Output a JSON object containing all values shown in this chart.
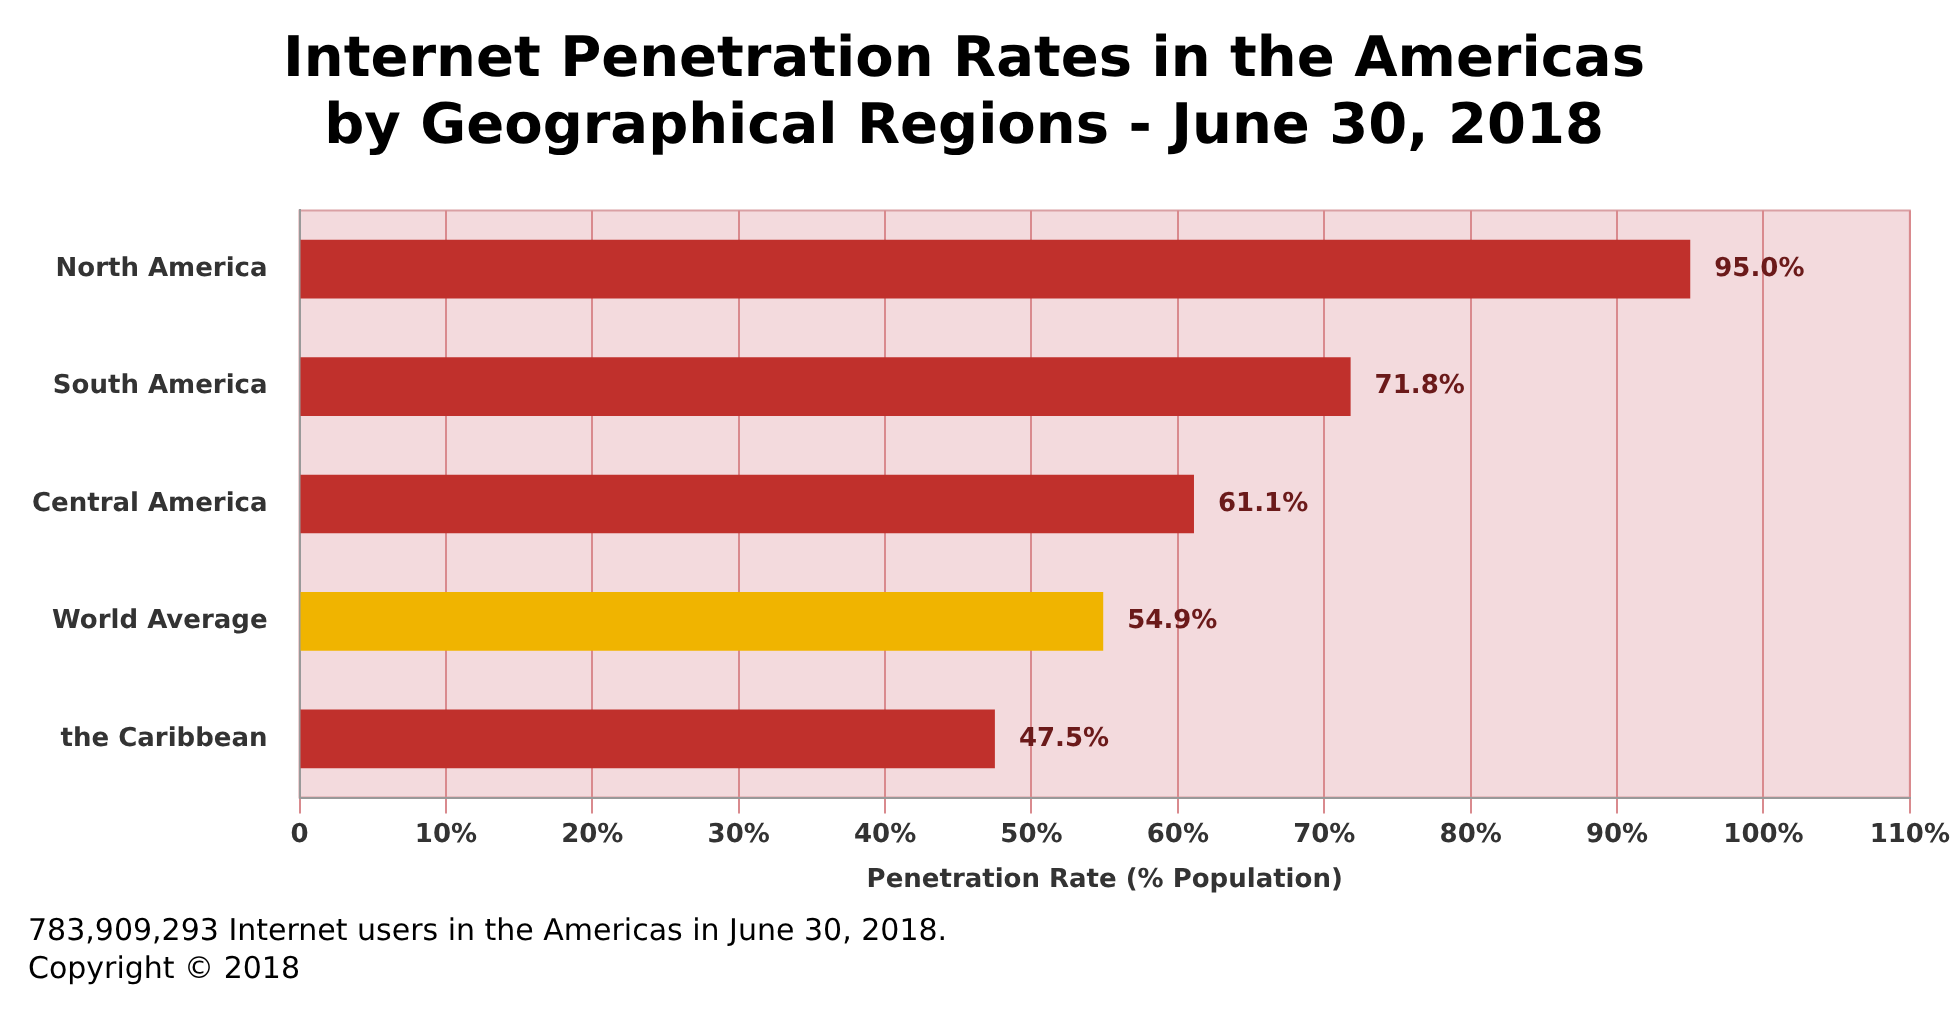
{
  "chart_data": {
    "type": "bar",
    "orientation": "horizontal",
    "title": "Internet Penetration Rates in the Americas\nby Geographical Regions - June 30, 2018",
    "categories": [
      "North America",
      "South America",
      "Central America",
      "World Average",
      "the Caribbean"
    ],
    "values": [
      95.0,
      71.8,
      61.1,
      54.9,
      47.5
    ],
    "colors": [
      "#c0302c",
      "#c0302c",
      "#c0302c",
      "#f0b400",
      "#c0302c"
    ],
    "value_labels": [
      "95.0%",
      "71.8%",
      "61.1%",
      "54.9%",
      "47.5%"
    ],
    "xlabel": "Penetration Rate (% Population)",
    "xlim": [
      0,
      110
    ],
    "xticks": [
      {
        "value": 0,
        "label": "0"
      },
      {
        "value": 10,
        "label": "10%"
      },
      {
        "value": 20,
        "label": "20%"
      },
      {
        "value": 30,
        "label": "30%"
      },
      {
        "value": 40,
        "label": "40%"
      },
      {
        "value": 50,
        "label": "50%"
      },
      {
        "value": 60,
        "label": "60%"
      },
      {
        "value": 70,
        "label": "70%"
      },
      {
        "value": 80,
        "label": "80%"
      },
      {
        "value": 90,
        "label": "90%"
      },
      {
        "value": 100,
        "label": "100%"
      },
      {
        "value": 110,
        "label": "110%"
      }
    ],
    "grid": "x",
    "legend": false,
    "annotations": [
      "783,909,293 Internet users in the Americas in June 30, 2018.",
      "Copyright © 2018"
    ]
  }
}
